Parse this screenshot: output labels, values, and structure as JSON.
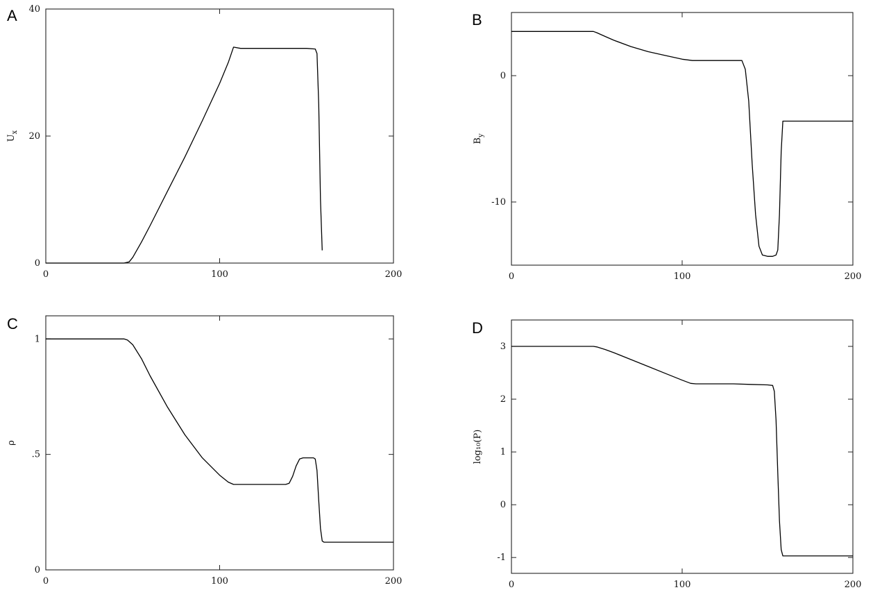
{
  "chart_data": [
    {
      "type": "line",
      "panel_label": "A",
      "title": "",
      "xlabel": "",
      "ylabel": "U",
      "ylabel_sub": "x",
      "xlim": [
        0,
        200
      ],
      "ylim": [
        0,
        40
      ],
      "xticks": [
        0,
        100,
        200
      ],
      "xtick_labels": [
        "0",
        "100",
        "200"
      ],
      "yticks": [
        0,
        20,
        40
      ],
      "ytick_labels": [
        "0",
        "20",
        "40"
      ],
      "grid": false,
      "series": [
        {
          "x": [
            0,
            45,
            48,
            50,
            55,
            60,
            70,
            80,
            90,
            100,
            105,
            108,
            112,
            120,
            130,
            140,
            150,
            155,
            156,
            157,
            158,
            159
          ],
          "y": [
            0,
            0,
            0.2,
            0.9,
            3.3,
            5.9,
            11.3,
            16.7,
            22.4,
            28.3,
            31.6,
            34,
            33.8,
            33.8,
            33.8,
            33.8,
            33.8,
            33.7,
            33,
            25,
            10,
            2
          ]
        }
      ]
    },
    {
      "type": "line",
      "panel_label": "B",
      "title": "",
      "xlabel": "",
      "ylabel": "B",
      "ylabel_sub": "y",
      "xlim": [
        0,
        200
      ],
      "ylim": [
        -15,
        5
      ],
      "xticks": [
        0,
        100,
        200
      ],
      "xtick_labels": [
        "0",
        "100",
        "200"
      ],
      "yticks": [
        -10,
        0
      ],
      "ytick_labels": [
        "-10",
        "0"
      ],
      "grid": false,
      "series": [
        {
          "x": [
            0,
            48,
            50,
            55,
            60,
            70,
            80,
            90,
            100,
            106,
            110,
            120,
            130,
            135,
            137,
            139,
            141,
            143,
            145,
            147,
            150,
            153,
            155,
            156,
            157,
            158,
            159,
            200
          ],
          "y": [
            3.5,
            3.5,
            3.4,
            3.1,
            2.8,
            2.3,
            1.9,
            1.6,
            1.3,
            1.2,
            1.2,
            1.2,
            1.2,
            1.2,
            0.5,
            -2,
            -7,
            -11,
            -13.5,
            -14.2,
            -14.3,
            -14.3,
            -14.2,
            -13.8,
            -11,
            -6,
            -3.6,
            -3.6
          ]
        }
      ]
    },
    {
      "type": "line",
      "panel_label": "C",
      "title": "",
      "xlabel": "",
      "ylabel": "ρ",
      "ylabel_sub": "",
      "xlim": [
        0,
        200
      ],
      "ylim": [
        0,
        1.1
      ],
      "xticks": [
        0,
        100,
        200
      ],
      "xtick_labels": [
        "0",
        "100",
        "200"
      ],
      "yticks": [
        0,
        0.5,
        1
      ],
      "ytick_labels": [
        "0",
        ".5",
        "1"
      ],
      "grid": false,
      "series": [
        {
          "x": [
            0,
            45,
            47,
            50,
            55,
            60,
            70,
            80,
            90,
            100,
            105,
            108,
            112,
            120,
            130,
            138,
            140,
            142,
            144,
            146,
            148,
            150,
            152,
            154,
            155,
            156,
            157,
            158,
            159,
            160,
            200
          ],
          "y": [
            1,
            1,
            0.995,
            0.975,
            0.915,
            0.84,
            0.705,
            0.585,
            0.485,
            0.41,
            0.38,
            0.37,
            0.37,
            0.37,
            0.37,
            0.37,
            0.375,
            0.405,
            0.45,
            0.48,
            0.485,
            0.485,
            0.485,
            0.485,
            0.48,
            0.43,
            0.3,
            0.18,
            0.125,
            0.12,
            0.12
          ]
        }
      ]
    },
    {
      "type": "line",
      "panel_label": "D",
      "title": "",
      "xlabel": "",
      "ylabel": "log₁₀(P)",
      "ylabel_sub": "",
      "xlim": [
        0,
        200
      ],
      "ylim": [
        -1.3,
        3.5
      ],
      "xticks": [
        0,
        100,
        200
      ],
      "xtick_labels": [
        "0",
        "100",
        "200"
      ],
      "yticks": [
        -1,
        0,
        1,
        2,
        3
      ],
      "ytick_labels": [
        "-1",
        "0",
        "1",
        "2",
        "3"
      ],
      "grid": false,
      "series": [
        {
          "x": [
            0,
            48,
            50,
            55,
            60,
            70,
            80,
            90,
            100,
            105,
            108,
            112,
            120,
            130,
            140,
            150,
            153,
            154,
            155,
            156,
            157,
            158,
            159,
            160,
            200
          ],
          "y": [
            3,
            3,
            2.99,
            2.94,
            2.88,
            2.75,
            2.62,
            2.49,
            2.36,
            2.3,
            2.29,
            2.29,
            2.29,
            2.29,
            2.28,
            2.27,
            2.26,
            2.15,
            1.6,
            0.6,
            -0.3,
            -0.85,
            -0.97,
            -0.97,
            -0.97
          ]
        }
      ]
    }
  ]
}
